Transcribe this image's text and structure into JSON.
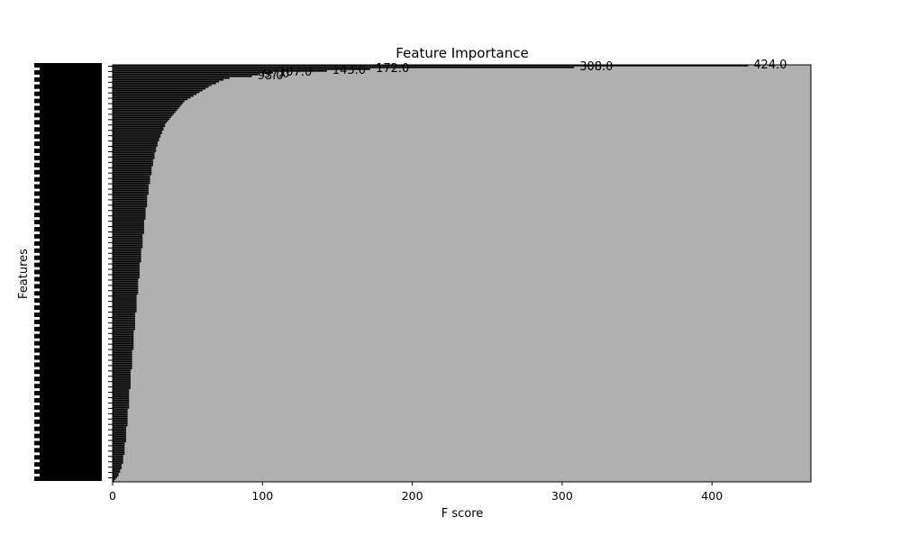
{
  "chart_data": {
    "type": "bar",
    "orientation": "horizontal",
    "title": "Feature Importance",
    "xlabel": "F score",
    "ylabel": "Features",
    "xlim": [
      0,
      466
    ],
    "xticks": [
      0,
      100,
      200,
      300,
      400
    ],
    "grid": true,
    "legend": "none",
    "values_visible_labels": [
      {
        "value": 424.0,
        "label": "424.0"
      },
      {
        "value": 308.0,
        "label": "308.0"
      },
      {
        "value": 172.0,
        "label": "172.0"
      },
      {
        "value": 143.0,
        "label": "143.0"
      },
      {
        "value": 107.0,
        "label": "107.0"
      },
      {
        "value": 97.0,
        "label": "97.0"
      },
      {
        "value": 93.0,
        "label": "93.0"
      }
    ],
    "values_by_rank": [
      424,
      308,
      172,
      143,
      107,
      97,
      93,
      78,
      74,
      71,
      69,
      66,
      64,
      62,
      60,
      58,
      56,
      54,
      52,
      50,
      48,
      47,
      46,
      45,
      44,
      43,
      42,
      41,
      40,
      39,
      38,
      37,
      36,
      35,
      35,
      34,
      34,
      33,
      33,
      32,
      32,
      31,
      31,
      30,
      30,
      30,
      29,
      29,
      29,
      28,
      28,
      28,
      28,
      27,
      27,
      27,
      27,
      26,
      26,
      26,
      26,
      26,
      25,
      25,
      25,
      25,
      25,
      24,
      24,
      24,
      24,
      24,
      24,
      23,
      23,
      23,
      23,
      23,
      23,
      23,
      22,
      22,
      22,
      22,
      22,
      22,
      22,
      21,
      21,
      21,
      21,
      21,
      21,
      21,
      21,
      20,
      20,
      20,
      20,
      20,
      20,
      20,
      20,
      19,
      19,
      19,
      19,
      19,
      19,
      19,
      19,
      18,
      18,
      18,
      18,
      18,
      18,
      18,
      18,
      18,
      17,
      17,
      17,
      17,
      17,
      17,
      17,
      17,
      17,
      16,
      16,
      16,
      16,
      16,
      16,
      16,
      16,
      16,
      16,
      15,
      15,
      15,
      15,
      15,
      15,
      15,
      15,
      15,
      15,
      14,
      14,
      14,
      14,
      14,
      14,
      14,
      14,
      14,
      14,
      14,
      13,
      13,
      13,
      13,
      13,
      13,
      13,
      13,
      13,
      13,
      13,
      12,
      12,
      12,
      12,
      12,
      12,
      12,
      12,
      12,
      12,
      12,
      11,
      11,
      11,
      11,
      11,
      11,
      11,
      11,
      11,
      11,
      11,
      10,
      10,
      10,
      10,
      10,
      10,
      10,
      10,
      10,
      10,
      9,
      9,
      9,
      9,
      9,
      9,
      9,
      9,
      9,
      8,
      8,
      8,
      8,
      8,
      8,
      8,
      7,
      7,
      7,
      7,
      7,
      6,
      6,
      6,
      5,
      5,
      4,
      4,
      3,
      2,
      1
    ],
    "bar_color": "#000000",
    "plot_background": "#b0b0b0"
  }
}
